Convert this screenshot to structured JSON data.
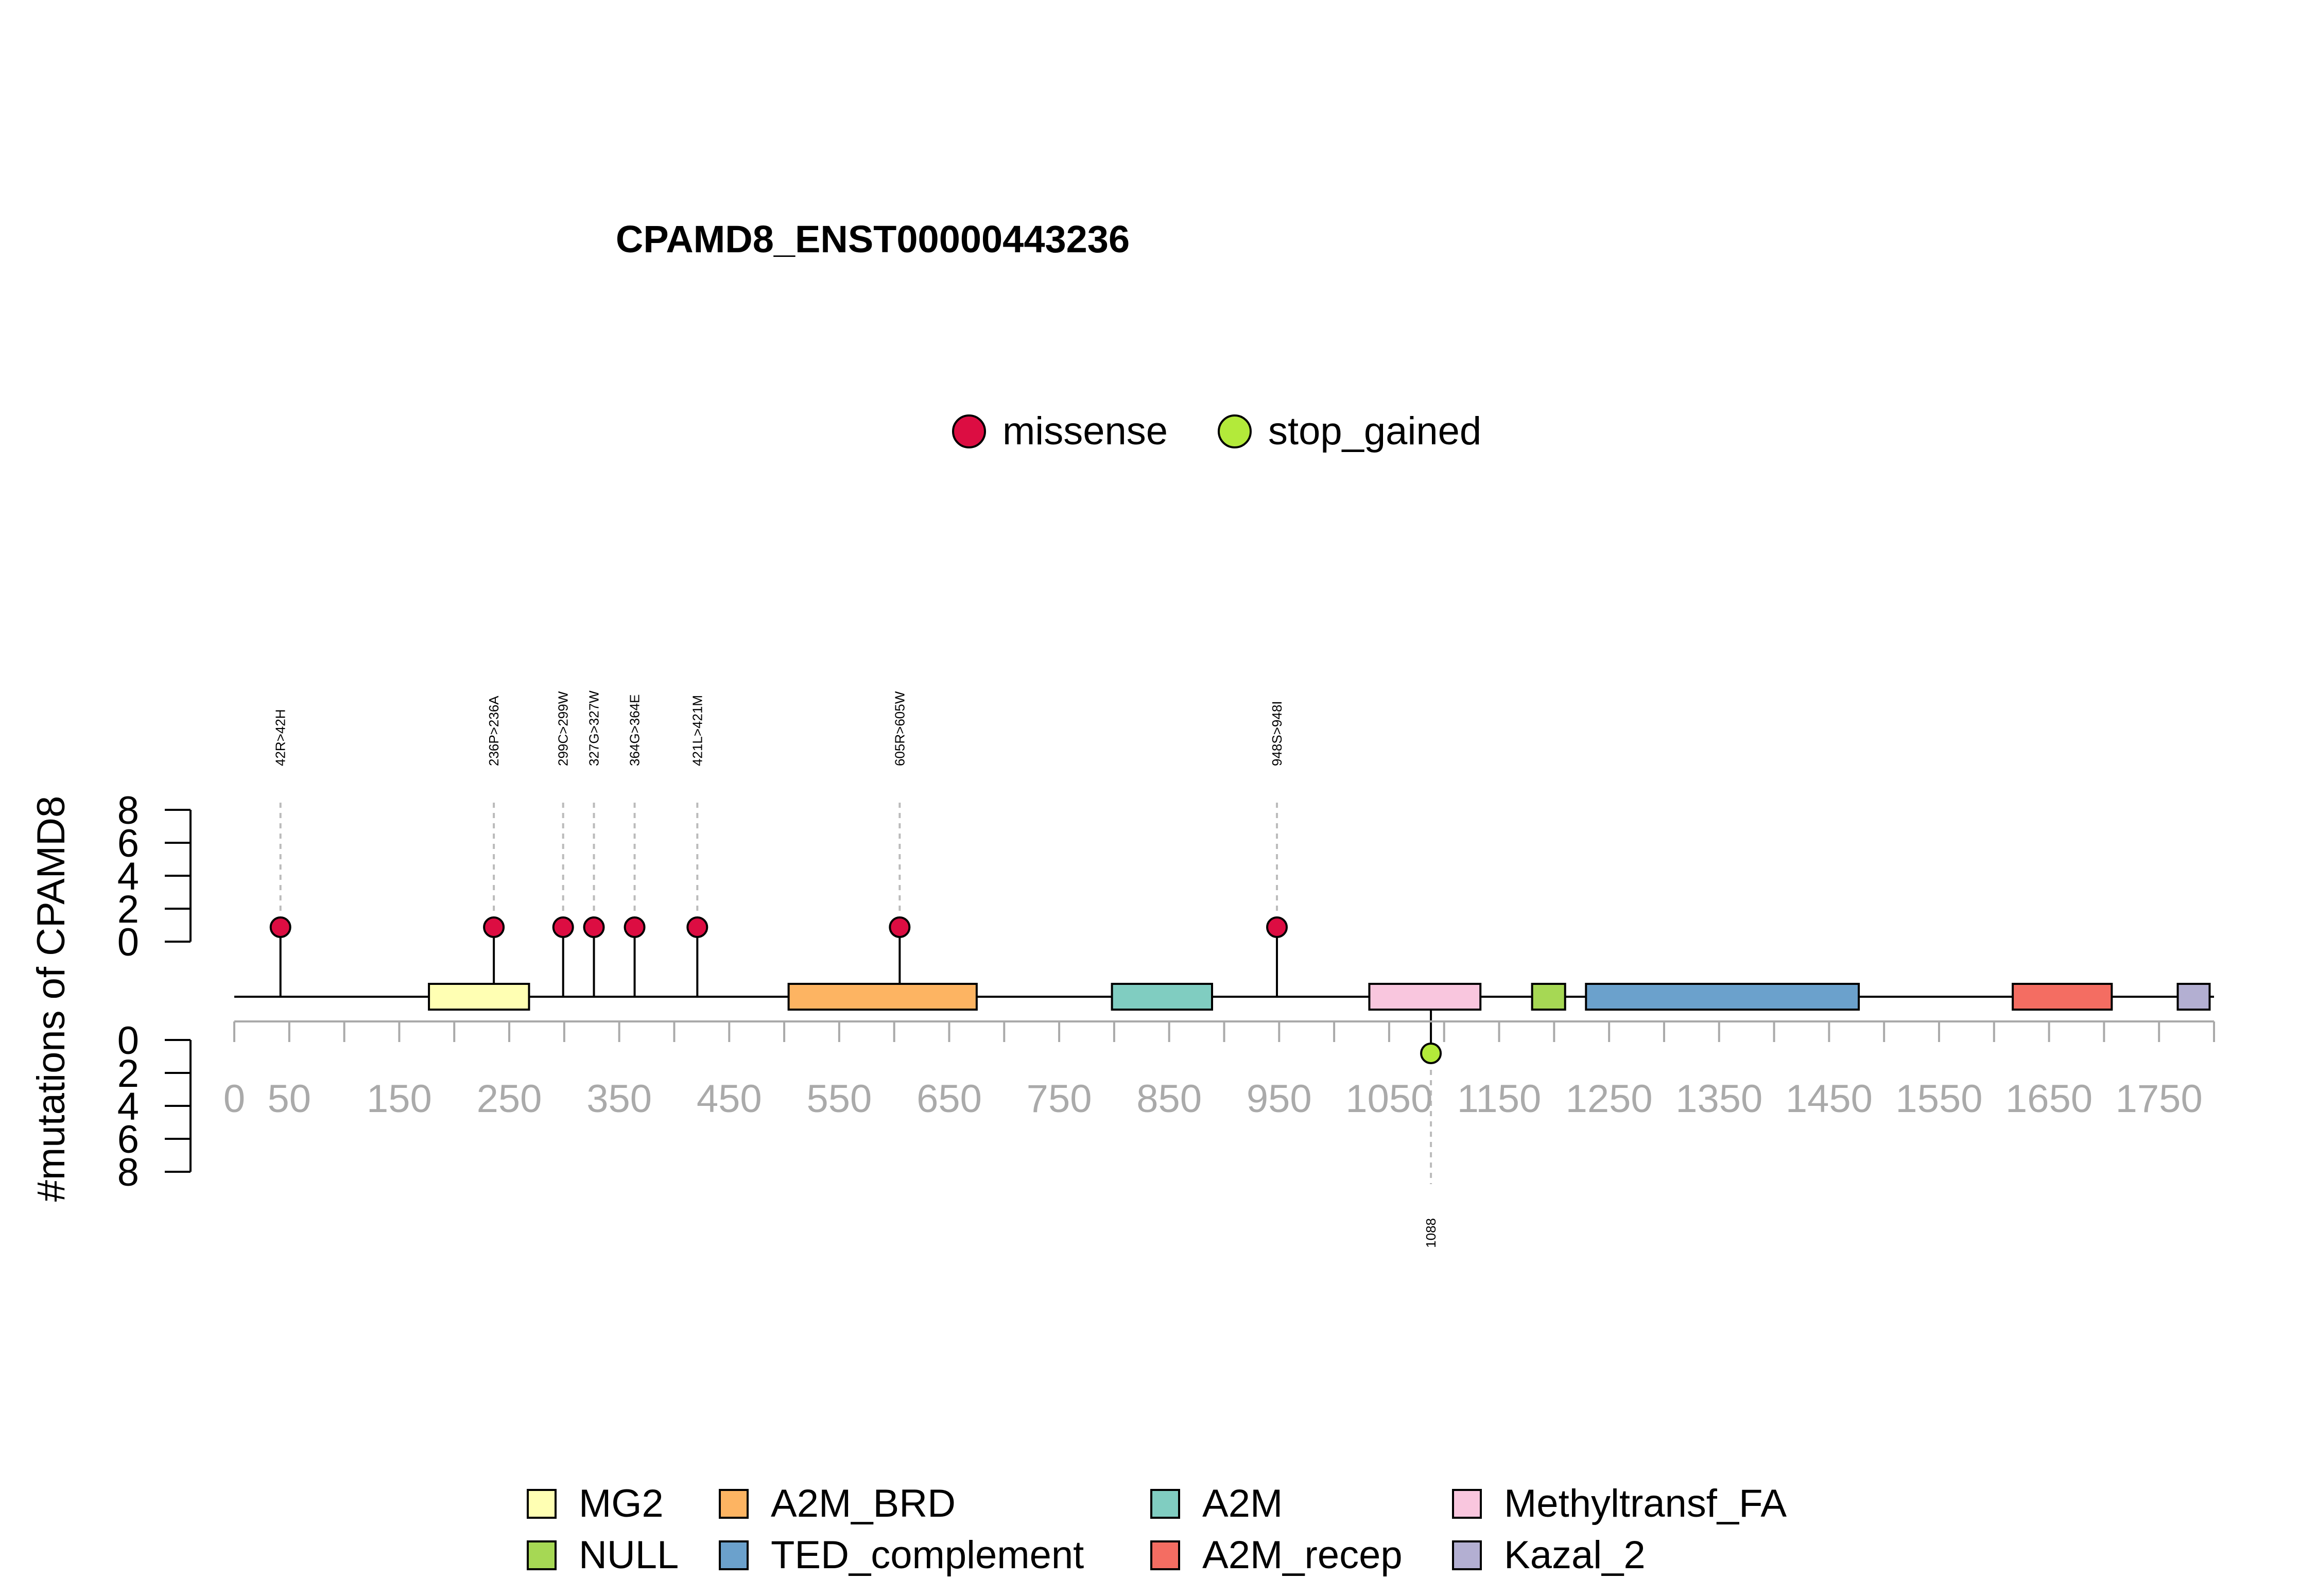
{
  "chart_data": {
    "type": "lollipop",
    "title": "CPAMD8_ENST00000443236",
    "ylabel": "#mutations of CPAMD8",
    "xlim": [
      0,
      1800
    ],
    "x_ticks": [
      "0",
      "50",
      "150",
      "250",
      "350",
      "450",
      "550",
      "650",
      "750",
      "850",
      "950",
      "1050",
      "1150",
      "1250",
      "1350",
      "1450",
      "1550",
      "1650",
      "1750"
    ],
    "y_ticks": [
      "0",
      "2",
      "4",
      "6",
      "8"
    ],
    "ylim": [
      0,
      8
    ],
    "mutation_legend": [
      {
        "name": "missense",
        "color": "#DC0D42"
      },
      {
        "name": "stop_gained",
        "color": "#B3EA3A"
      }
    ],
    "mutations_top": [
      {
        "pos": 42,
        "label": "42R>42H",
        "count": 1,
        "type": "missense"
      },
      {
        "pos": 236,
        "label": "236P>236A",
        "count": 1,
        "type": "missense"
      },
      {
        "pos": 299,
        "label": "299C>299W",
        "count": 1,
        "type": "missense"
      },
      {
        "pos": 327,
        "label": "327G>327W",
        "count": 1,
        "type": "missense"
      },
      {
        "pos": 364,
        "label": "364G>364E",
        "count": 1,
        "type": "missense"
      },
      {
        "pos": 421,
        "label": "421L>421M",
        "count": 1,
        "type": "missense"
      },
      {
        "pos": 605,
        "label": "605R>605W",
        "count": 1,
        "type": "missense"
      },
      {
        "pos": 948,
        "label": "948S>948I",
        "count": 1,
        "type": "missense"
      }
    ],
    "mutations_bottom": [
      {
        "pos": 1088,
        "label": "1088",
        "count": 1,
        "type": "stop_gained"
      }
    ],
    "domains": [
      {
        "name": "MG2",
        "start": 177,
        "end": 268,
        "color": "#FFFFB3"
      },
      {
        "name": "A2M_BRD",
        "start": 504,
        "end": 675,
        "color": "#FDB462"
      },
      {
        "name": "A2M",
        "start": 798,
        "end": 889,
        "color": "#80CDC1"
      },
      {
        "name": "Methyltransf_FA",
        "start": 1032,
        "end": 1133,
        "color": "#F9C6DE"
      },
      {
        "name": "NULL",
        "start": 1180,
        "end": 1210,
        "color": "#A6D854"
      },
      {
        "name": "TED_complement",
        "start": 1229,
        "end": 1477,
        "color": "#6BA1CC"
      },
      {
        "name": "A2M_recep",
        "start": 1617,
        "end": 1707,
        "color": "#F46D62"
      },
      {
        "name": "Kazal_2",
        "start": 1767,
        "end": 1796,
        "color": "#B3AFD2"
      }
    ],
    "domain_legend_order": [
      "MG2",
      "A2M_BRD",
      "A2M",
      "Methyltransf_FA",
      "NULL",
      "TED_complement",
      "A2M_recep",
      "Kazal_2"
    ]
  }
}
